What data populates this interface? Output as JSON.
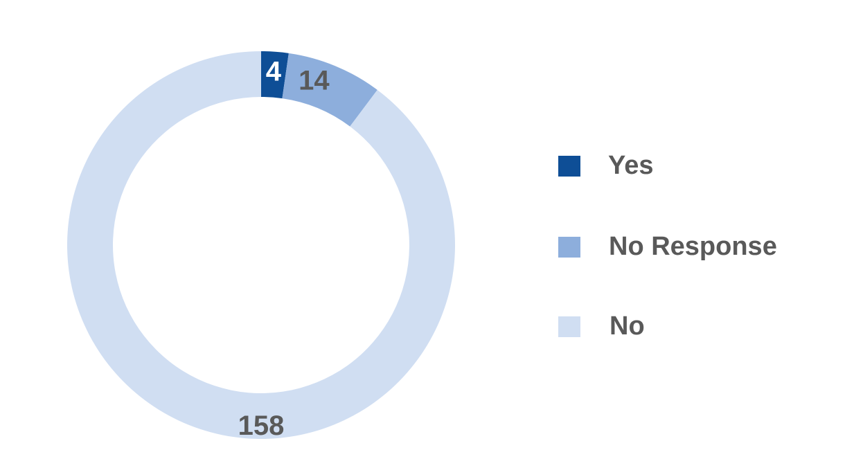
{
  "chart_data": {
    "type": "pie",
    "variant": "donut",
    "title": "",
    "slices": [
      {
        "label": "Yes",
        "value": 4,
        "color": "#0E4E96"
      },
      {
        "label": "No Response",
        "value": 14,
        "color": "#8DAEDC"
      },
      {
        "label": "No",
        "value": 158,
        "color": "#D0DEF2"
      }
    ],
    "label_colors": {
      "Yes": "#FFFFFF",
      "No Response": "#595959",
      "No": "#595959"
    },
    "legend_position": "right"
  },
  "legend": {
    "items": [
      {
        "label": "Yes",
        "color": "#0E4E96"
      },
      {
        "label": "No Response",
        "color": "#8DAEDC"
      },
      {
        "label": "No",
        "color": "#D0DEF2"
      }
    ]
  }
}
